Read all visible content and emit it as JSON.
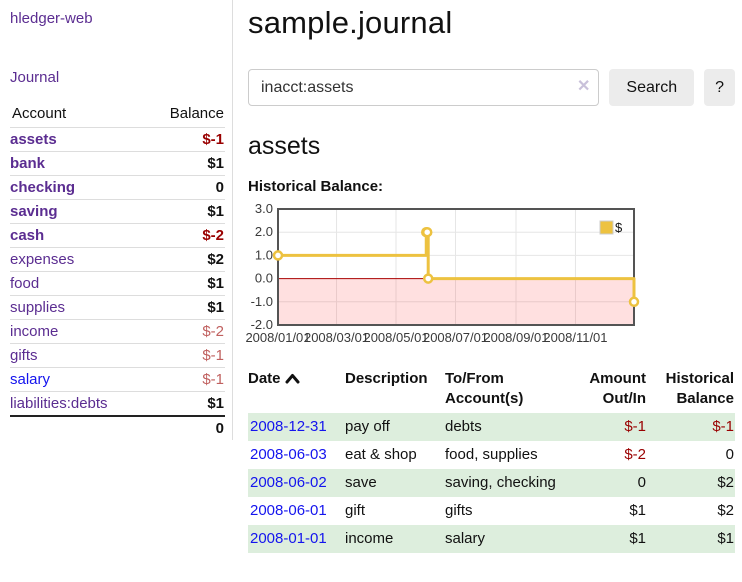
{
  "app": {
    "title": "hledger-web"
  },
  "sidebar": {
    "journal_link": "Journal",
    "col_account": "Account",
    "col_balance": "Balance",
    "accounts": [
      {
        "name": "assets",
        "indent": 1,
        "balance": "$-1",
        "bold": true,
        "neg": "strong",
        "link": "purple"
      },
      {
        "name": "bank",
        "indent": 2,
        "balance": "$1",
        "bold": true,
        "neg": "none",
        "link": "purple"
      },
      {
        "name": "checking",
        "indent": 3,
        "balance": "0",
        "bold": true,
        "neg": "none",
        "link": "purple"
      },
      {
        "name": "saving",
        "indent": 3,
        "balance": "$1",
        "bold": true,
        "neg": "none",
        "link": "purple"
      },
      {
        "name": "cash",
        "indent": 2,
        "balance": "$-2",
        "bold": true,
        "neg": "strong",
        "link": "purple"
      },
      {
        "name": "expenses",
        "indent": 1,
        "balance": "$2",
        "bold": false,
        "neg": "none",
        "link": "purple"
      },
      {
        "name": "food",
        "indent": 2,
        "balance": "$1",
        "bold": false,
        "neg": "none",
        "link": "purple"
      },
      {
        "name": "supplies",
        "indent": 2,
        "balance": "$1",
        "bold": false,
        "neg": "none",
        "link": "purple"
      },
      {
        "name": "income",
        "indent": 1,
        "balance": "$-2",
        "bold": false,
        "neg": "soft",
        "link": "purple"
      },
      {
        "name": "gifts",
        "indent": 2,
        "balance": "$-1",
        "bold": false,
        "neg": "soft",
        "link": "purple"
      },
      {
        "name": "salary",
        "indent": 2,
        "balance": "$-1",
        "bold": false,
        "neg": "soft",
        "link": "blue"
      },
      {
        "name": "liabilities:debts",
        "indent": 1,
        "balance": "$1",
        "bold": false,
        "neg": "none",
        "link": "purple"
      }
    ],
    "total": "0"
  },
  "main": {
    "title": "sample.journal",
    "search": {
      "value": "inacct:assets",
      "clear_icon": "✕",
      "button_label": "Search",
      "help_label": "?"
    },
    "account_heading": "assets",
    "chart_label": "Historical Balance:"
  },
  "chart_data": {
    "type": "line",
    "title": "Historical Balance",
    "step": "after",
    "legend": [
      {
        "label": "$",
        "color": "#EDC240"
      }
    ],
    "ylim": [
      -2,
      3
    ],
    "y_ticks": [
      {
        "v": 3,
        "label": "3.0"
      },
      {
        "v": 2,
        "label": "2.0"
      },
      {
        "v": 1,
        "label": "1.0"
      },
      {
        "v": 0,
        "label": "0.0"
      },
      {
        "v": -1,
        "label": "-1.0"
      },
      {
        "v": -2,
        "label": "-2.0"
      }
    ],
    "x_domain_days": [
      0,
      365
    ],
    "x_ticks": [
      {
        "day": 0,
        "label": "2008/01/01"
      },
      {
        "day": 60,
        "label": "2008/03/01"
      },
      {
        "day": 121,
        "label": "2008/05/01"
      },
      {
        "day": 182,
        "label": "2008/07/01"
      },
      {
        "day": 244,
        "label": "2008/09/01"
      },
      {
        "day": 305,
        "label": "2008/11/01"
      }
    ],
    "points": [
      {
        "date": "2008-01-01",
        "day": 0,
        "value": 1
      },
      {
        "date": "2008-06-01",
        "day": 152,
        "value": 2
      },
      {
        "date": "2008-06-02",
        "day": 153,
        "value": 2
      },
      {
        "date": "2008-06-03",
        "day": 154,
        "value": 0
      },
      {
        "date": "2008-12-31",
        "day": 365,
        "value": -1
      }
    ],
    "colors": {
      "series": "#EDC240",
      "marker_fill": "#ffffff",
      "zero_line": "#aa0000",
      "negative_region": "rgba(255,0,0,0.12)",
      "grid": "#e6e6e6",
      "border": "#545454",
      "tick_text": "#3a3a3a",
      "legend_border": "#cccccc"
    }
  },
  "register": {
    "header": {
      "date": "Date",
      "description": "Description",
      "tofrom": [
        "To/From",
        "Account(s)"
      ],
      "amount": [
        "Amount",
        "Out/In"
      ],
      "balance": [
        "Historical",
        "Balance"
      ]
    },
    "rows": [
      {
        "date": "2008-12-31",
        "description": "pay off",
        "accounts": "debts",
        "amount": "$-1",
        "balance": "$-1",
        "amount_neg": true,
        "balance_neg": true
      },
      {
        "date": "2008-06-03",
        "description": "eat & shop",
        "accounts": "food, supplies",
        "amount": "$-2",
        "balance": "0",
        "amount_neg": true,
        "balance_neg": false
      },
      {
        "date": "2008-06-02",
        "description": "save",
        "accounts": "saving, checking",
        "amount": "0",
        "balance": "$2",
        "amount_neg": false,
        "balance_neg": false
      },
      {
        "date": "2008-06-01",
        "description": "gift",
        "accounts": "gifts",
        "amount": "$1",
        "balance": "$2",
        "amount_neg": false,
        "balance_neg": false
      },
      {
        "date": "2008-01-01",
        "description": "income",
        "accounts": "salary",
        "amount": "$1",
        "balance": "$1",
        "amount_neg": false,
        "balance_neg": false
      }
    ]
  }
}
